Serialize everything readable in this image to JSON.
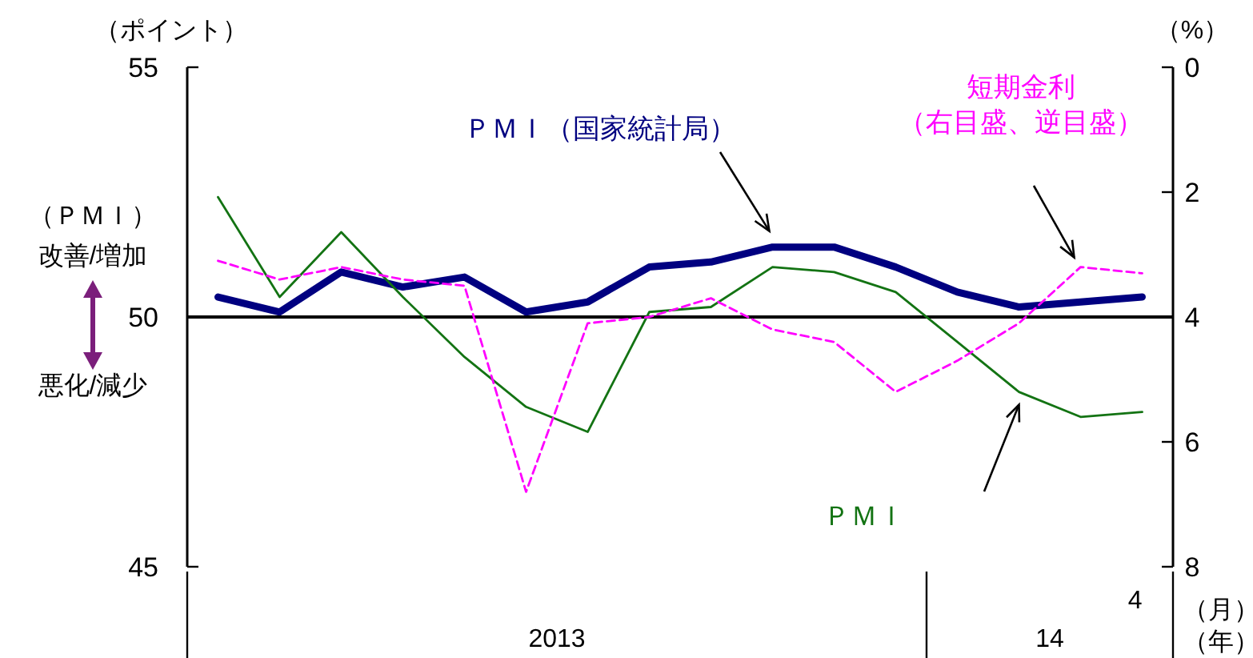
{
  "chart_data": {
    "type": "line",
    "categories": [
      null,
      null,
      null,
      null,
      null,
      null,
      null,
      null,
      null,
      null,
      null,
      null,
      null,
      null,
      null,
      "4"
    ],
    "series": [
      {
        "name": "ＰＭＩ（国家統計局）",
        "color": "#000080",
        "values": [
          50.4,
          50.1,
          50.9,
          50.6,
          50.8,
          50.1,
          50.3,
          51.0,
          51.1,
          51.4,
          51.4,
          51.0,
          50.5,
          50.2,
          50.3,
          50.4
        ]
      },
      {
        "name": "ＰＭＩ",
        "color": "#137313",
        "values": [
          52.4,
          50.4,
          51.7,
          50.4,
          49.2,
          48.2,
          47.7,
          50.1,
          50.2,
          51.0,
          50.9,
          50.5,
          49.5,
          48.5,
          48.0,
          48.1
        ]
      },
      {
        "name": "短期金利（右目盛、逆目盛）",
        "color": "#ff00ff",
        "axis": "y2",
        "line_style": "dashed",
        "values": [
          3.1,
          3.4,
          3.2,
          3.4,
          3.5,
          6.8,
          4.1,
          4.0,
          3.7,
          4.2,
          4.4,
          5.2,
          4.7,
          4.1,
          3.2,
          3.3
        ]
      }
    ],
    "ylim": [
      45,
      55
    ],
    "yticks": [
      45,
      50,
      55
    ],
    "y2lim": [
      8,
      0
    ],
    "y2ticks": [
      0,
      2,
      4,
      6,
      8
    ],
    "ylabel": "（ポイント）",
    "y2label": "（%）",
    "ref_lines": [
      {
        "axis": "y",
        "value": 50,
        "color": "#000000"
      }
    ],
    "annotations": [
      "（ＰＭＩ）",
      "改善/増加",
      "悪化/減少",
      "2013",
      "14",
      "（月）",
      "（年）"
    ],
    "grid": false,
    "marker": "none",
    "line_style": "solid"
  }
}
